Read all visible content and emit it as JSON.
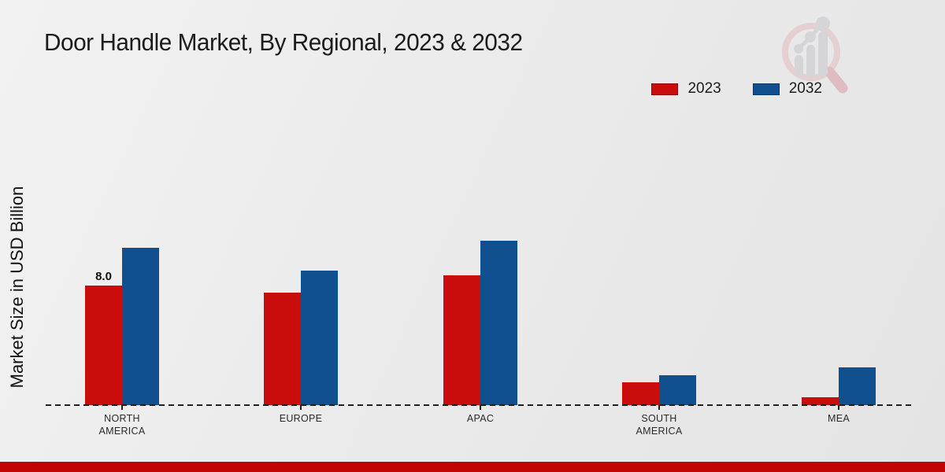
{
  "title": "Door Handle Market, By Regional, 2023 & 2032",
  "y_axis_label": "Market Size in USD Billion",
  "legend": {
    "items": [
      {
        "label": "2023",
        "color": "#c90d0d"
      },
      {
        "label": "2032",
        "color": "#10508f"
      }
    ]
  },
  "colors": {
    "series_2023": "#c90d0d",
    "series_2032": "#10508f",
    "footer_bar": "#c00505",
    "baseline": "#1f1f1f"
  },
  "watermark_icon": "magnifier-growth-chart-logo",
  "chart_data": {
    "type": "bar",
    "title": "Door Handle Market, By Regional, 2023 & 2032",
    "xlabel": "",
    "ylabel": "Market Size in USD Billion",
    "categories": [
      "NORTH\nAMERICA",
      "EUROPE",
      "APAC",
      "SOUTH\nAMERICA",
      "MEA"
    ],
    "series": [
      {
        "name": "2023",
        "color": "#c90d0d",
        "values": [
          8.0,
          7.5,
          8.7,
          1.5,
          0.5
        ],
        "data_labels": [
          "8.0",
          "",
          "",
          "",
          ""
        ]
      },
      {
        "name": "2032",
        "color": "#10508f",
        "values": [
          10.5,
          9.0,
          11.0,
          2.0,
          2.5
        ],
        "data_labels": [
          "",
          "",
          "",
          "",
          ""
        ]
      }
    ],
    "ylim": [
      0,
      12
    ],
    "grid": false,
    "legend_position": "top-right",
    "baseline_style": "dashed"
  }
}
